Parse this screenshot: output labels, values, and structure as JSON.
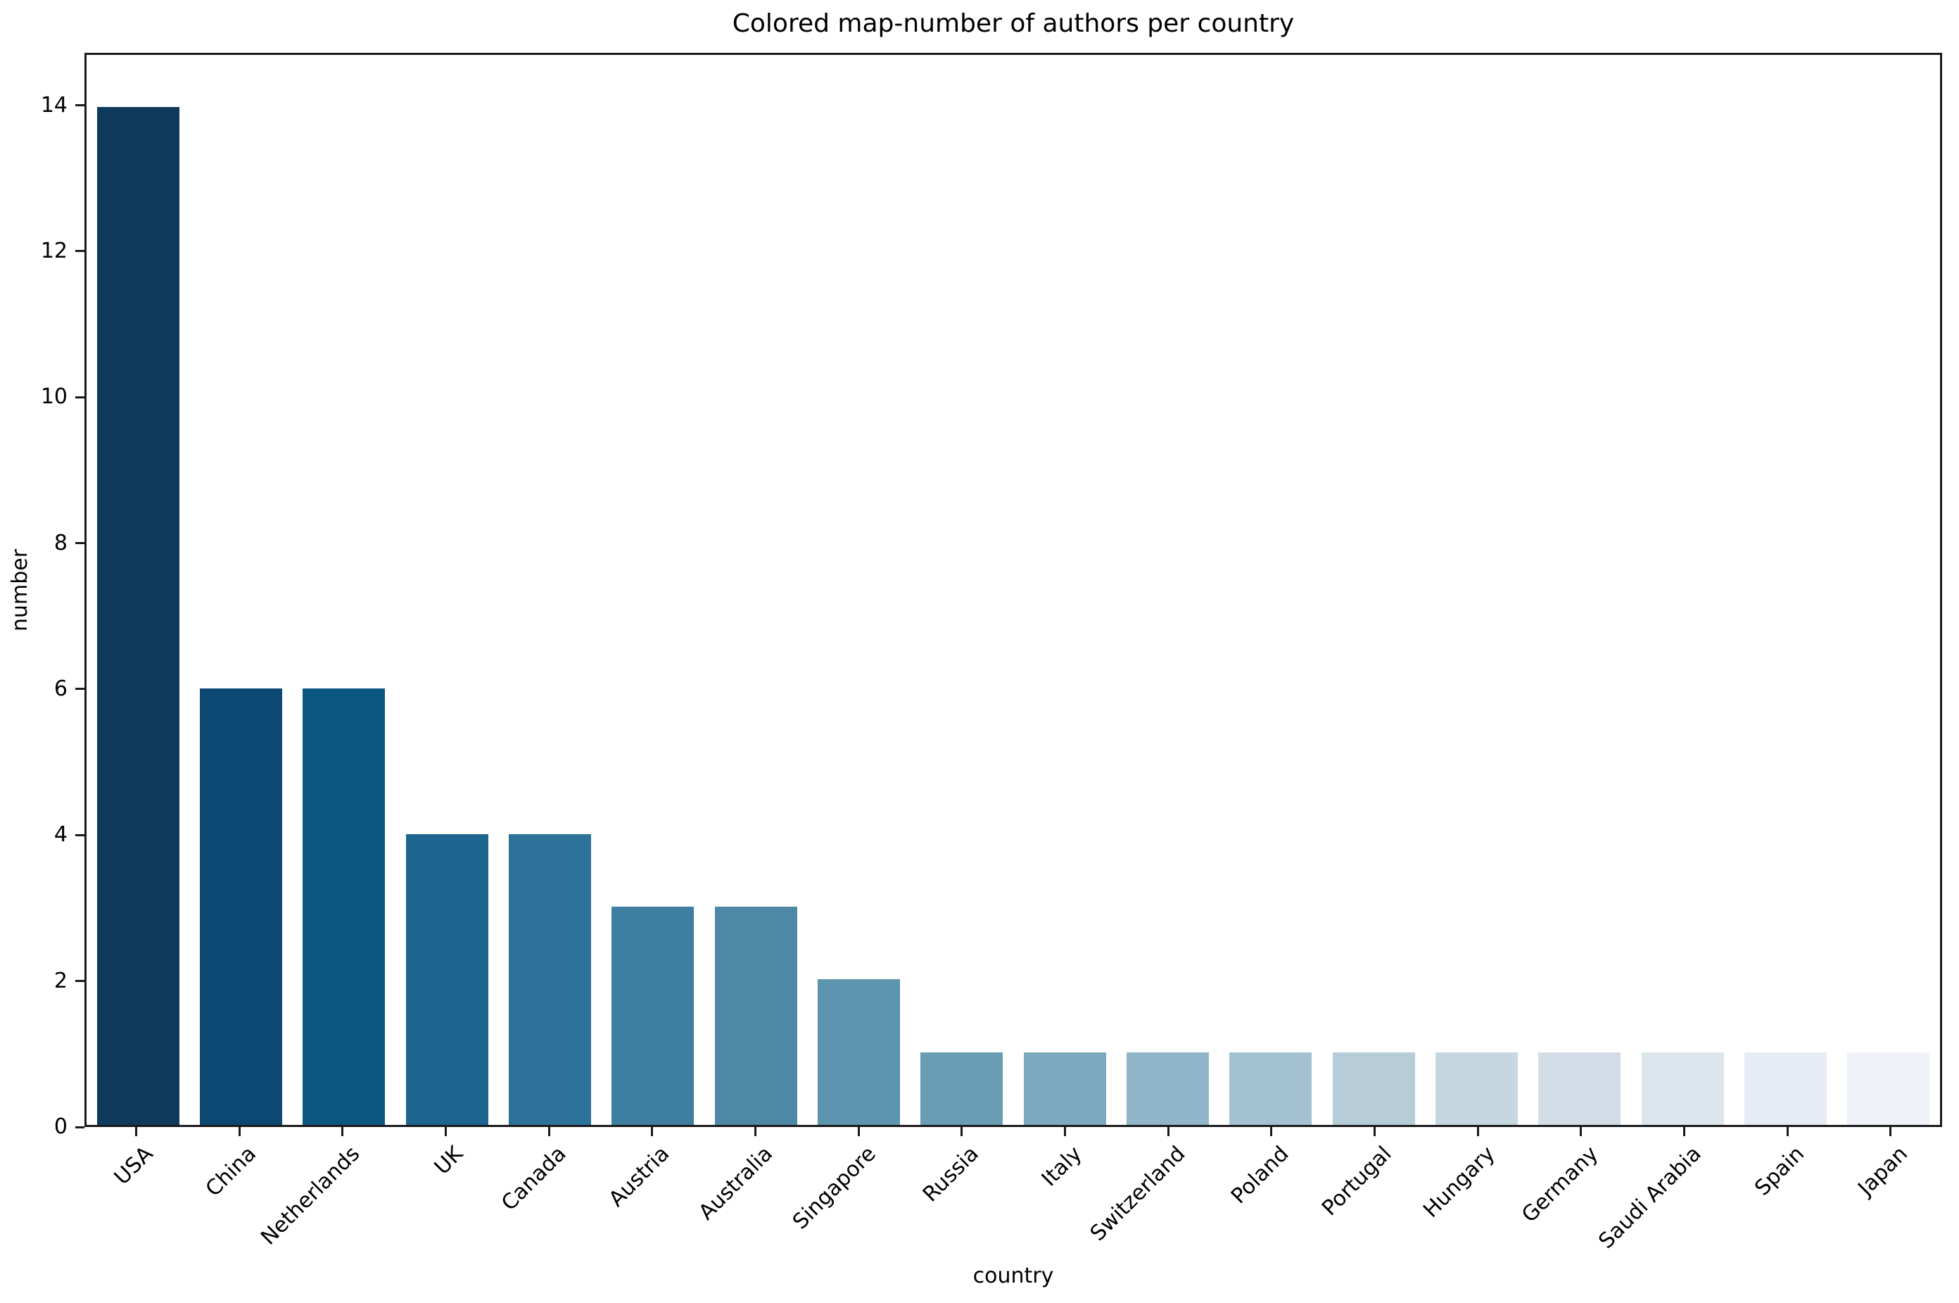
{
  "chart_data": {
    "type": "bar",
    "title": "Colored map-number of authors per country",
    "xlabel": "country",
    "ylabel": "number",
    "categories": [
      "USA",
      "China",
      "Netherlands",
      "UK",
      "Canada",
      "Austria",
      "Australia",
      "Singapore",
      "Russia",
      "Italy",
      "Switzerland",
      "Poland",
      "Portugal",
      "Hungary",
      "Germany",
      "Saudi Arabia",
      "Spain",
      "Japan"
    ],
    "values": [
      14,
      6,
      6,
      4,
      4,
      3,
      3,
      2,
      1,
      1,
      1,
      1,
      1,
      1,
      1,
      1,
      1,
      1
    ],
    "bar_colors": [
      "#0e3a5e",
      "#0d4872",
      "#0b577f",
      "#1d6690",
      "#2d7299",
      "#3d7ea1",
      "#4d89a7",
      "#5d94ae",
      "#699db4",
      "#7da9be",
      "#91b5c8",
      "#a4c1d1",
      "#b6ccd9",
      "#c7d7e2",
      "#d2dde8",
      "#dce6ed",
      "#e6ecf3",
      "#eef1f7"
    ],
    "ylim": [
      0,
      14.72
    ],
    "yticks": [
      0,
      2,
      4,
      6,
      8,
      10,
      12,
      14
    ],
    "x_tick_rotation_deg": 45,
    "grid": false,
    "legend": "none",
    "bar_width_fraction": 0.8
  },
  "colors": {
    "background": "#ffffff",
    "spine": "#1a1a1a",
    "text": "#000000"
  }
}
